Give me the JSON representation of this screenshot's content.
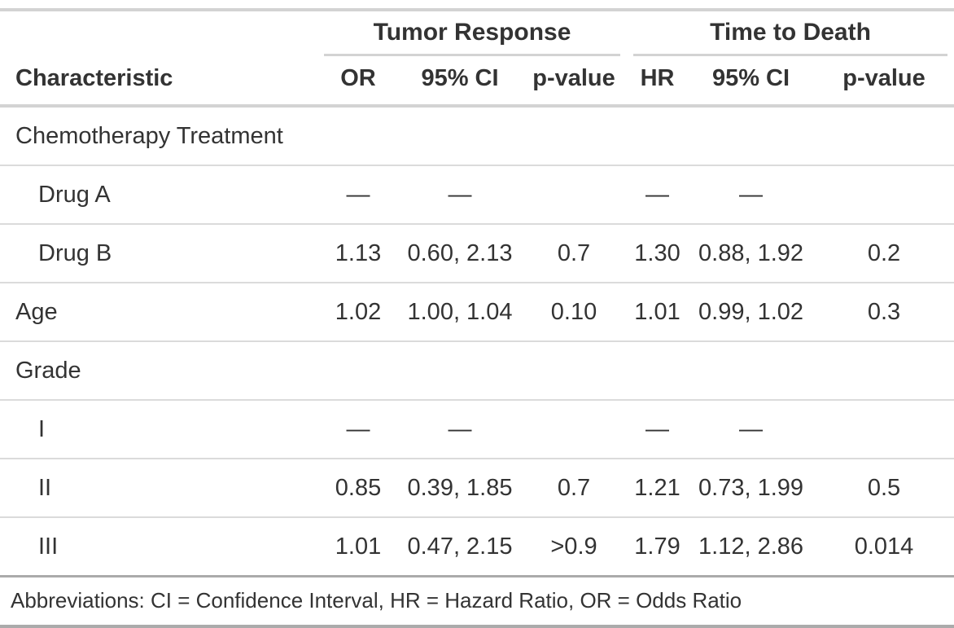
{
  "table": {
    "header": {
      "stub_label": "Characteristic",
      "spanners": [
        {
          "label": "Tumor Response",
          "columns": [
            "OR",
            "95% CI",
            "p-value"
          ]
        },
        {
          "label": "Time to Death",
          "columns": [
            "HR",
            "95% CI",
            "p-value"
          ]
        }
      ]
    },
    "rows": [
      {
        "label": "Chemotherapy Treatment",
        "indent": false,
        "cells": [
          "",
          "",
          "",
          "",
          "",
          ""
        ]
      },
      {
        "label": "Drug A",
        "indent": true,
        "cells": [
          "—",
          "—",
          "",
          "—",
          "—",
          ""
        ]
      },
      {
        "label": "Drug B",
        "indent": true,
        "cells": [
          "1.13",
          "0.60, 2.13",
          "0.7",
          "1.30",
          "0.88, 1.92",
          "0.2"
        ]
      },
      {
        "label": "Age",
        "indent": false,
        "cells": [
          "1.02",
          "1.00, 1.04",
          "0.10",
          "1.01",
          "0.99, 1.02",
          "0.3"
        ]
      },
      {
        "label": "Grade",
        "indent": false,
        "cells": [
          "",
          "",
          "",
          "",
          "",
          ""
        ]
      },
      {
        "label": "I",
        "indent": true,
        "cells": [
          "—",
          "—",
          "",
          "—",
          "—",
          ""
        ]
      },
      {
        "label": "II",
        "indent": true,
        "cells": [
          "0.85",
          "0.39, 1.85",
          "0.7",
          "1.21",
          "0.73, 1.99",
          "0.5"
        ]
      },
      {
        "label": "III",
        "indent": true,
        "cells": [
          "1.01",
          "0.47, 2.15",
          ">0.9",
          "1.79",
          "1.12, 2.86",
          "0.014"
        ]
      }
    ],
    "footer": {
      "abbreviations": "Abbreviations: CI = Confidence Interval, HR = Hazard Ratio, OR = Odds Ratio"
    },
    "colors": {
      "text": "#333333",
      "light_border": "#D3D3D3",
      "row_divider": "#DBDBDB",
      "dark_border": "#ABABAB",
      "background": "#FFFFFF"
    }
  },
  "chart_data": {
    "type": "table",
    "title": "",
    "column_spanners": [
      {
        "label": "Tumor Response",
        "span": [
          "OR",
          "95% CI",
          "p-value"
        ]
      },
      {
        "label": "Time to Death",
        "span": [
          "HR",
          "95% CI",
          "p-value"
        ]
      }
    ],
    "columns": [
      "Characteristic",
      "OR",
      "95% CI",
      "p-value",
      "HR",
      "95% CI",
      "p-value"
    ],
    "rows": [
      [
        "Chemotherapy Treatment",
        "",
        "",
        "",
        "",
        "",
        ""
      ],
      [
        "Drug A",
        "—",
        "—",
        "",
        "—",
        "—",
        ""
      ],
      [
        "Drug B",
        "1.13",
        "0.60, 2.13",
        "0.7",
        "1.30",
        "0.88, 1.92",
        "0.2"
      ],
      [
        "Age",
        "1.02",
        "1.00, 1.04",
        "0.10",
        "1.01",
        "0.99, 1.02",
        "0.3"
      ],
      [
        "Grade",
        "",
        "",
        "",
        "",
        "",
        ""
      ],
      [
        "I",
        "—",
        "—",
        "",
        "—",
        "—",
        ""
      ],
      [
        "II",
        "0.85",
        "0.39, 1.85",
        "0.7",
        "1.21",
        "0.73, 1.99",
        "0.5"
      ],
      [
        "III",
        "1.01",
        "0.47, 2.15",
        ">0.9",
        "1.79",
        "1.12, 2.86",
        "0.014"
      ]
    ],
    "footer": "Abbreviations: CI = Confidence Interval, HR = Hazard Ratio, OR = Odds Ratio"
  }
}
